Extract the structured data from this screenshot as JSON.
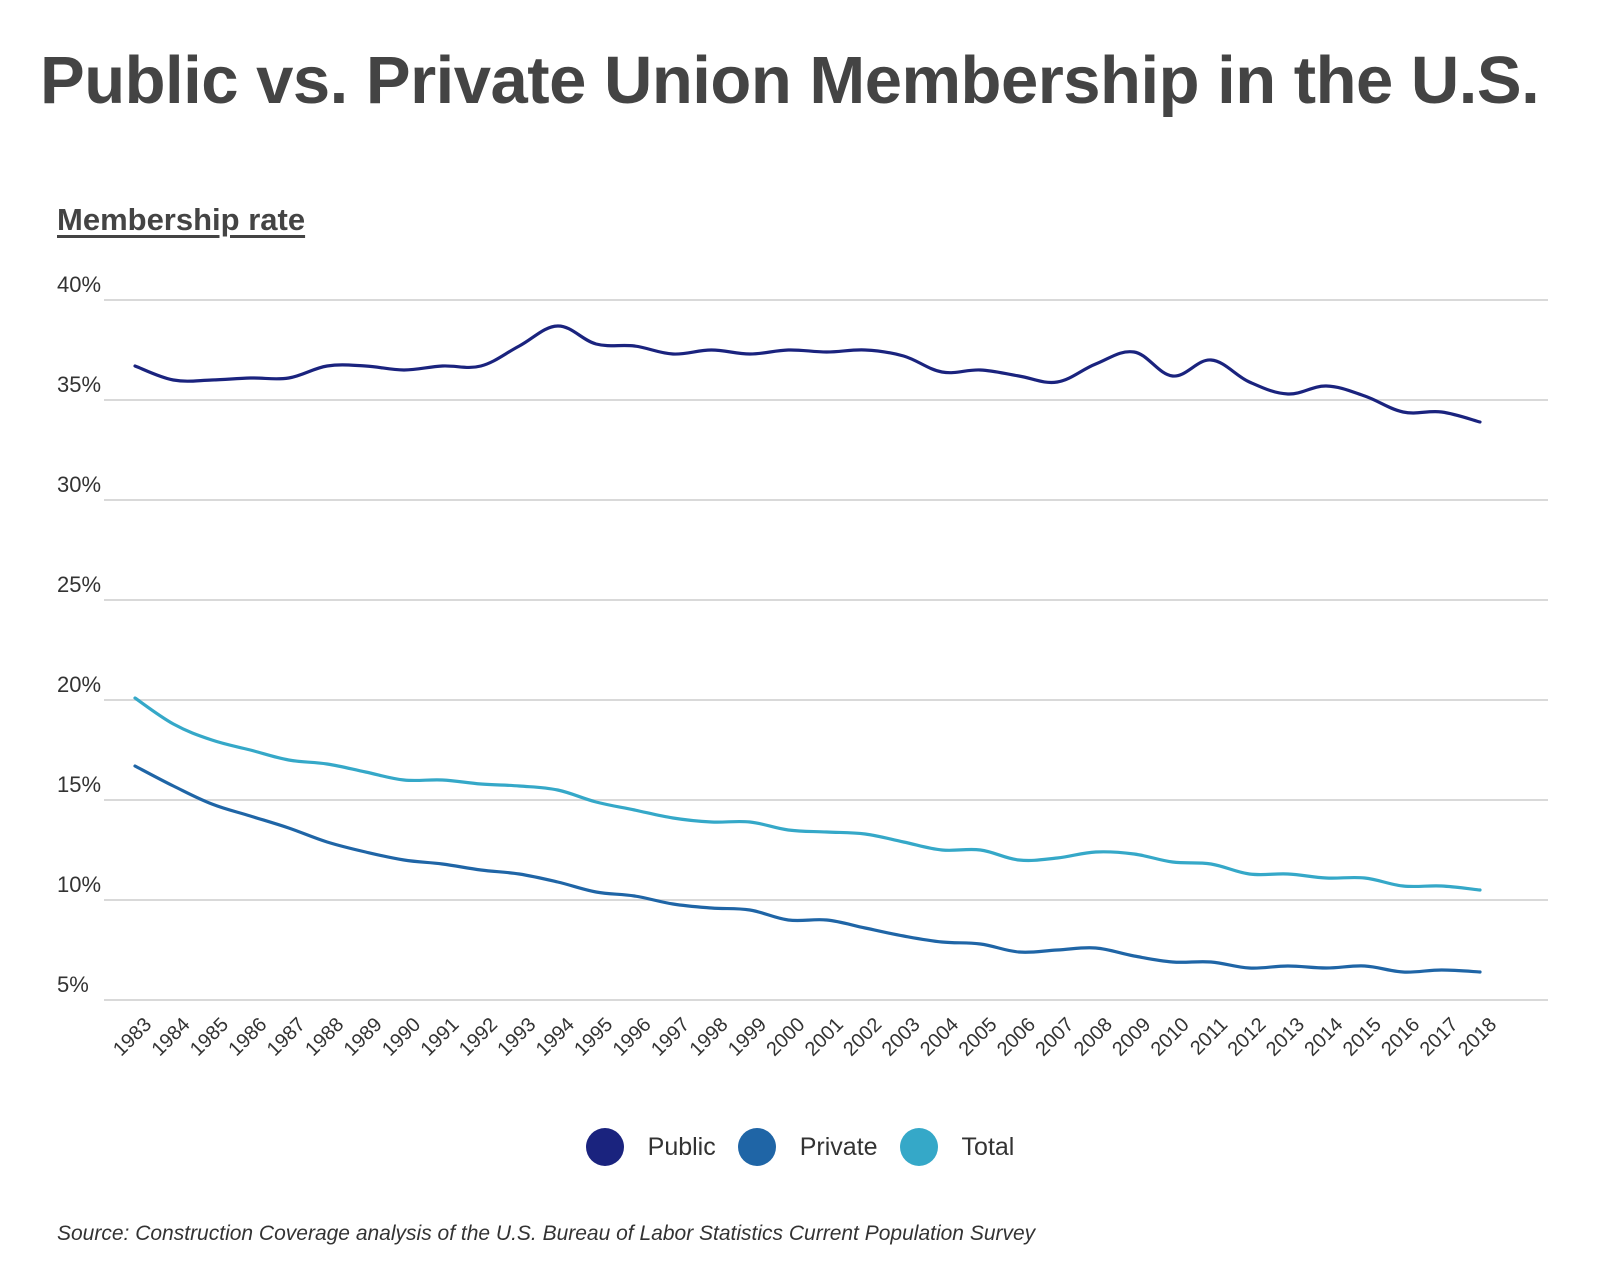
{
  "title": "Public vs. Private Union Membership in the U.S.",
  "source": "Source: Construction Coverage analysis of the U.S. Bureau of Labor Statistics Current Population Survey",
  "colors": {
    "public": "#1a237e",
    "private": "#1f65a6",
    "total": "#35a8c8",
    "grid": "#d9d9d9",
    "text": "#404040"
  },
  "chart_data": {
    "type": "line",
    "title": "Public vs. Private Union Membership in the U.S.",
    "ylabel": "Membership rate",
    "xlabel": "",
    "ylim": [
      5,
      40
    ],
    "yticks": [
      5,
      10,
      15,
      20,
      25,
      30,
      35,
      40
    ],
    "yticklabels": [
      "5%",
      "10%",
      "15%",
      "20%",
      "25%",
      "30%",
      "35%",
      "40%"
    ],
    "grid": true,
    "legend_position": "bottom",
    "x": [
      "1983",
      "1984",
      "1985",
      "1986",
      "1987",
      "1988",
      "1989",
      "1990",
      "1991",
      "1992",
      "1993",
      "1994",
      "1995",
      "1996",
      "1997",
      "1998",
      "1999",
      "2000",
      "2001",
      "2002",
      "2003",
      "2004",
      "2005",
      "2006",
      "2007",
      "2008",
      "2009",
      "2010",
      "2011",
      "2012",
      "2013",
      "2014",
      "2015",
      "2016",
      "2017",
      "2018"
    ],
    "series": [
      {
        "name": "Public",
        "color": "#1a237e",
        "values": [
          36.7,
          36.0,
          36.0,
          36.1,
          36.1,
          36.7,
          36.7,
          36.5,
          36.7,
          36.7,
          37.7,
          38.7,
          37.8,
          37.7,
          37.3,
          37.5,
          37.3,
          37.5,
          37.4,
          37.5,
          37.2,
          36.4,
          36.5,
          36.2,
          35.9,
          36.8,
          37.4,
          36.2,
          37.0,
          35.9,
          35.3,
          35.7,
          35.2,
          34.4,
          34.4,
          33.9
        ]
      },
      {
        "name": "Private",
        "color": "#1f65a6",
        "values": [
          16.7,
          15.7,
          14.8,
          14.2,
          13.6,
          12.9,
          12.4,
          12.0,
          11.8,
          11.5,
          11.3,
          10.9,
          10.4,
          10.2,
          9.8,
          9.6,
          9.5,
          9.0,
          9.0,
          8.6,
          8.2,
          7.9,
          7.8,
          7.4,
          7.5,
          7.6,
          7.2,
          6.9,
          6.9,
          6.6,
          6.7,
          6.6,
          6.7,
          6.4,
          6.5,
          6.4
        ]
      },
      {
        "name": "Total",
        "color": "#35a8c8",
        "values": [
          20.1,
          18.8,
          18.0,
          17.5,
          17.0,
          16.8,
          16.4,
          16.0,
          16.0,
          15.8,
          15.7,
          15.5,
          14.9,
          14.5,
          14.1,
          13.9,
          13.9,
          13.5,
          13.4,
          13.3,
          12.9,
          12.5,
          12.5,
          12.0,
          12.1,
          12.4,
          12.3,
          11.9,
          11.8,
          11.3,
          11.3,
          11.1,
          11.1,
          10.7,
          10.7,
          10.5
        ]
      }
    ]
  }
}
